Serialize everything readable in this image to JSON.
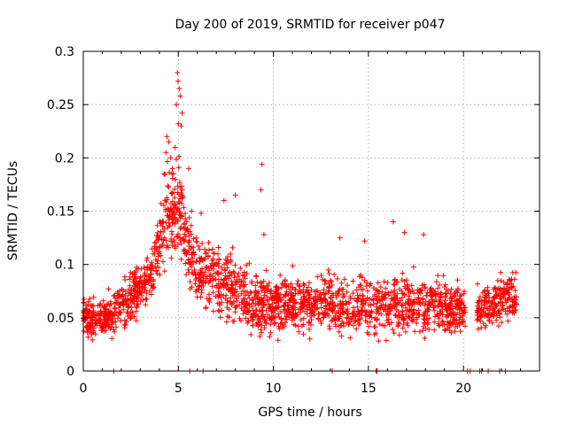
{
  "chart_data": {
    "type": "scatter",
    "title": "Day 200 of 2019, SRMTID for receiver p047",
    "xlabel": "GPS time / hours",
    "ylabel": "SRMTID / TECUs",
    "xlim": [
      0,
      24
    ],
    "ylim": [
      0,
      0.3
    ],
    "xticks": [
      0,
      5,
      10,
      15,
      20
    ],
    "xtick_labels": [
      "0",
      "5",
      "10",
      "15",
      "20"
    ],
    "yticks": [
      0,
      0.05,
      0.1,
      0.15,
      0.2,
      0.25,
      0.3
    ],
    "ytick_labels": [
      "0",
      "0.05",
      "0.1",
      "0.15",
      "0.2",
      "0.25",
      "0.3"
    ],
    "grid": true,
    "marker": "plus",
    "series": [
      {
        "name": "SRMTID",
        "color": "#ff0000",
        "envelope": [
          {
            "x": 0.0,
            "low": 0.03,
            "high": 0.08
          },
          {
            "x": 0.5,
            "low": 0.02,
            "high": 0.075
          },
          {
            "x": 1.0,
            "low": 0.025,
            "high": 0.07
          },
          {
            "x": 1.5,
            "low": 0.025,
            "high": 0.085
          },
          {
            "x": 2.0,
            "low": 0.03,
            "high": 0.09
          },
          {
            "x": 2.5,
            "low": 0.035,
            "high": 0.1
          },
          {
            "x": 3.0,
            "low": 0.045,
            "high": 0.11
          },
          {
            "x": 3.5,
            "low": 0.055,
            "high": 0.125
          },
          {
            "x": 4.0,
            "low": 0.07,
            "high": 0.17
          },
          {
            "x": 4.5,
            "low": 0.08,
            "high": 0.22
          },
          {
            "x": 5.0,
            "low": 0.09,
            "high": 0.23
          },
          {
            "x": 5.5,
            "low": 0.07,
            "high": 0.16
          },
          {
            "x": 6.0,
            "low": 0.05,
            "high": 0.14
          },
          {
            "x": 7.0,
            "low": 0.04,
            "high": 0.13
          },
          {
            "x": 8.0,
            "low": 0.035,
            "high": 0.12
          },
          {
            "x": 9.0,
            "low": 0.02,
            "high": 0.1
          },
          {
            "x": 10.0,
            "low": 0.025,
            "high": 0.1
          },
          {
            "x": 12.0,
            "low": 0.025,
            "high": 0.1
          },
          {
            "x": 14.0,
            "low": 0.025,
            "high": 0.095
          },
          {
            "x": 16.0,
            "low": 0.025,
            "high": 0.1
          },
          {
            "x": 18.0,
            "low": 0.025,
            "high": 0.1
          },
          {
            "x": 19.5,
            "low": 0.025,
            "high": 0.09
          },
          {
            "x": 20.0,
            "low": 0.03,
            "high": 0.085
          },
          {
            "x": 21.0,
            "low": 0.03,
            "high": 0.085
          },
          {
            "x": 22.0,
            "low": 0.035,
            "high": 0.1
          },
          {
            "x": 22.8,
            "low": 0.04,
            "high": 0.105
          }
        ],
        "data_gaps_hours": [
          [
            20.1,
            20.7
          ]
        ],
        "outliers": [
          {
            "x": 4.95,
            "y": 0.28
          },
          {
            "x": 4.98,
            "y": 0.272
          },
          {
            "x": 5.05,
            "y": 0.265
          },
          {
            "x": 5.1,
            "y": 0.258
          },
          {
            "x": 4.9,
            "y": 0.25
          },
          {
            "x": 5.2,
            "y": 0.242
          },
          {
            "x": 5.0,
            "y": 0.232
          },
          {
            "x": 5.15,
            "y": 0.23
          },
          {
            "x": 4.4,
            "y": 0.22
          },
          {
            "x": 4.5,
            "y": 0.215
          },
          {
            "x": 4.35,
            "y": 0.205
          },
          {
            "x": 4.6,
            "y": 0.2
          },
          {
            "x": 9.4,
            "y": 0.194
          },
          {
            "x": 4.25,
            "y": 0.185
          },
          {
            "x": 5.55,
            "y": 0.19
          },
          {
            "x": 8.0,
            "y": 0.165
          },
          {
            "x": 7.4,
            "y": 0.16
          },
          {
            "x": 9.35,
            "y": 0.17
          },
          {
            "x": 5.7,
            "y": 0.15
          },
          {
            "x": 6.2,
            "y": 0.148
          },
          {
            "x": 16.3,
            "y": 0.14
          },
          {
            "x": 16.9,
            "y": 0.13
          },
          {
            "x": 17.9,
            "y": 0.128
          },
          {
            "x": 13.5,
            "y": 0.125
          },
          {
            "x": 14.8,
            "y": 0.122
          },
          {
            "x": 9.5,
            "y": 0.128
          }
        ],
        "zero_points_x": [
          1.6,
          5.6,
          6.3,
          13.1,
          15.4,
          15.45,
          20.2,
          20.35,
          20.85,
          20.95,
          21.3,
          21.9,
          22.2
        ]
      }
    ]
  }
}
